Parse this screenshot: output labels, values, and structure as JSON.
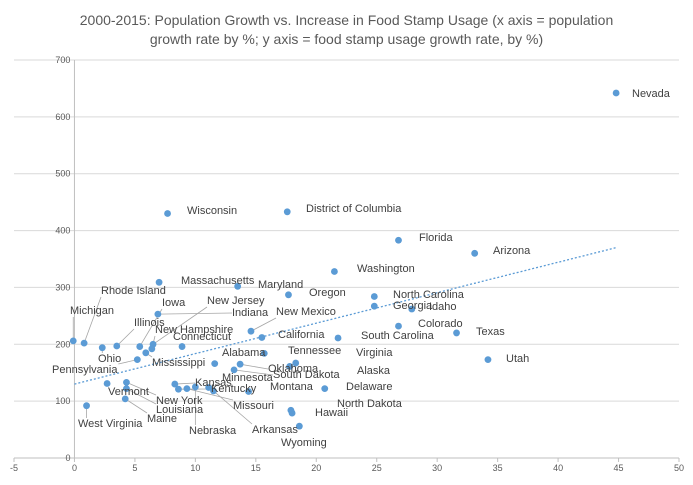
{
  "title_line1": "2000-2015: Population Growth vs. Increase in Food Stamp Usage (x axis = population",
  "title_line2": "growth rate by %; y axis = food stamp usage growth rate, by %)",
  "colors": {
    "point": "#5b9bd5",
    "trendline": "#5b9bd5",
    "grid": "#d9d9d9",
    "axis": "#bfbfbf",
    "label": "#404040",
    "leader": "#a6a6a6"
  },
  "chart_data": {
    "type": "scatter",
    "title": "2000-2015: Population Growth vs. Increase in Food Stamp Usage (x axis = population growth rate by %; y axis = food stamp usage growth rate, by %)",
    "xlabel": "",
    "ylabel": "",
    "xlim": [
      -5,
      50
    ],
    "ylim": [
      0,
      700
    ],
    "x_ticks": [
      -5,
      0,
      5,
      10,
      15,
      20,
      25,
      30,
      35,
      40,
      45,
      50
    ],
    "y_ticks": [
      0,
      100,
      200,
      300,
      400,
      500,
      600,
      700
    ],
    "grid": "horizontal",
    "legend": "none",
    "trendline": {
      "type": "linear",
      "start": [
        0,
        130
      ],
      "end": [
        44.8,
        370
      ]
    },
    "points": [
      {
        "label": "Nevada",
        "x": 44.8,
        "y": 642
      },
      {
        "label": "Wisconsin",
        "x": 7.7,
        "y": 430
      },
      {
        "label": "District of Columbia",
        "x": 17.6,
        "y": 433
      },
      {
        "label": "Florida",
        "x": 26.8,
        "y": 383
      },
      {
        "label": "Arizona",
        "x": 33.1,
        "y": 360
      },
      {
        "label": "Washington",
        "x": 21.5,
        "y": 328
      },
      {
        "label": "Massachusetts",
        "x": 7.0,
        "y": 309
      },
      {
        "label": "Maryland",
        "x": 13.5,
        "y": 302
      },
      {
        "label": "Oregon",
        "x": 17.7,
        "y": 287
      },
      {
        "label": "North Carolina",
        "x": 24.8,
        "y": 284
      },
      {
        "label": "Georgia",
        "x": 24.8,
        "y": 267
      },
      {
        "label": "Idaho",
        "x": 27.9,
        "y": 262
      },
      {
        "label": "Colorado",
        "x": 26.8,
        "y": 232
      },
      {
        "label": "Texas",
        "x": 31.6,
        "y": 220
      },
      {
        "label": "South Carolina",
        "x": 21.8,
        "y": 211
      },
      {
        "label": "California",
        "x": 15.5,
        "y": 212
      },
      {
        "label": "New Mexico",
        "x": 14.6,
        "y": 223
      },
      {
        "label": "Utah",
        "x": 34.2,
        "y": 173
      },
      {
        "label": "Virginia",
        "x": 18.3,
        "y": 167
      },
      {
        "label": "Tennessee",
        "x": 15.7,
        "y": 184
      },
      {
        "label": "Alaska",
        "x": 17.8,
        "y": 161
      },
      {
        "label": "South Dakota",
        "x": 13.2,
        "y": 155
      },
      {
        "label": "Oklahoma",
        "x": 13.7,
        "y": 165
      },
      {
        "label": "Alabama",
        "x": 11.6,
        "y": 166
      },
      {
        "label": "Delaware",
        "x": 20.7,
        "y": 122
      },
      {
        "label": "Montana",
        "x": 14.4,
        "y": 117
      },
      {
        "label": "North Dakota",
        "x": 18.0,
        "y": 79
      },
      {
        "label": "Hawaii",
        "x": 17.9,
        "y": 84
      },
      {
        "label": "Wyoming",
        "x": 18.6,
        "y": 56
      },
      {
        "label": "Michigan",
        "x": -0.1,
        "y": 206
      },
      {
        "label": "Rhode Island",
        "x": 0.8,
        "y": 202
      },
      {
        "label": "Illinois",
        "x": 3.5,
        "y": 197
      },
      {
        "label": "Iowa",
        "x": 5.4,
        "y": 196
      },
      {
        "label": "New Jersey",
        "x": 6.5,
        "y": 200
      },
      {
        "label": "Indiana",
        "x": 6.9,
        "y": 253
      },
      {
        "label": "New Hampshire",
        "x": 6.4,
        "y": 192
      },
      {
        "label": "Connecticut",
        "x": 8.9,
        "y": 196
      },
      {
        "label": "Ohio",
        "x": 2.3,
        "y": 194
      },
      {
        "label": "Pennsylvania",
        "x": 5.2,
        "y": 173
      },
      {
        "label": "Mississippi",
        "x": 5.9,
        "y": 185
      },
      {
        "label": "Vermont",
        "x": 2.7,
        "y": 131
      },
      {
        "label": "Kansas",
        "x": 8.3,
        "y": 130
      },
      {
        "label": "Kentucky",
        "x": 8.6,
        "y": 121
      },
      {
        "label": "Minnesota",
        "x": 11.1,
        "y": 124
      },
      {
        "label": "New York",
        "x": 4.3,
        "y": 133
      },
      {
        "label": "Louisiana",
        "x": 4.3,
        "y": 122
      },
      {
        "label": "Maine",
        "x": 4.2,
        "y": 104
      },
      {
        "label": "Missouri",
        "x": 9.3,
        "y": 122
      },
      {
        "label": "Nebraska",
        "x": 10.0,
        "y": 125
      },
      {
        "label": "Arkansas",
        "x": 11.5,
        "y": 118
      },
      {
        "label": "West Virginia",
        "x": 1.0,
        "y": 92
      }
    ]
  }
}
